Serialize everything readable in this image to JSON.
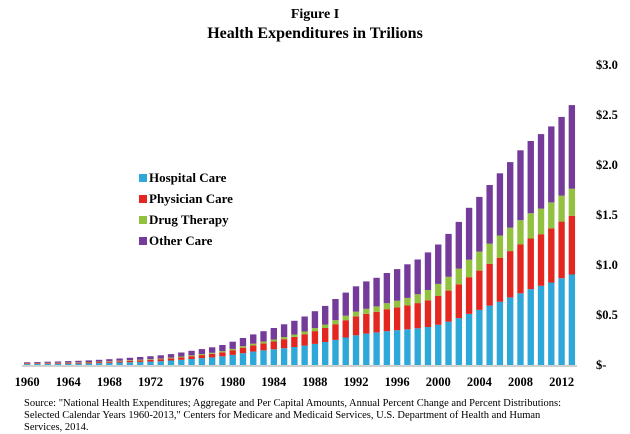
{
  "header": {
    "figure_label": "Figure I",
    "title": "Health Expenditures in Trilions"
  },
  "source_text": "Source: \"National Health Expenditures; Aggregate and Per Capital Amounts, Annual Percent Change and Percent Distributions: Selected Calendar Years 1960-2013,\" Centers for Medicare and Medicaid Services, U.S. Department of Health and Human Services, 2014.",
  "colors": {
    "hospital": "#2ea8d8",
    "physician": "#e3261f",
    "drug": "#92c13f",
    "other": "#743b9a"
  },
  "chart_data": {
    "type": "bar",
    "stacked": true,
    "title": "Health Expenditures in Trilions",
    "x": [
      1960,
      1961,
      1962,
      1963,
      1964,
      1965,
      1966,
      1967,
      1968,
      1969,
      1970,
      1971,
      1972,
      1973,
      1974,
      1975,
      1976,
      1977,
      1978,
      1979,
      1980,
      1981,
      1982,
      1983,
      1984,
      1985,
      1986,
      1987,
      1988,
      1989,
      1990,
      1991,
      1992,
      1993,
      1994,
      1995,
      1996,
      1997,
      1998,
      1999,
      2000,
      2001,
      2002,
      2003,
      2004,
      2005,
      2006,
      2007,
      2008,
      2009,
      2010,
      2011,
      2012,
      2013
    ],
    "x_tick_labels": [
      "1960",
      "1964",
      "1968",
      "1972",
      "1976",
      "1980",
      "1984",
      "1988",
      "1992",
      "1996",
      "2000",
      "2004",
      "2008",
      "2012"
    ],
    "y_tick_labels": [
      "$-",
      "$0.5",
      "$1.0",
      "$1.5",
      "$2.0",
      "$2.5",
      "$3.0"
    ],
    "ylim": [
      0,
      3.0
    ],
    "y_axis_side": "right",
    "legend_position": "left",
    "series": [
      {
        "name": "Hospital Care",
        "color_key": "hospital",
        "values": [
          0.009,
          0.01,
          0.011,
          0.012,
          0.013,
          0.014,
          0.016,
          0.019,
          0.022,
          0.025,
          0.028,
          0.031,
          0.034,
          0.039,
          0.045,
          0.052,
          0.06,
          0.068,
          0.076,
          0.087,
          0.101,
          0.118,
          0.134,
          0.147,
          0.157,
          0.168,
          0.18,
          0.194,
          0.211,
          0.23,
          0.251,
          0.275,
          0.297,
          0.314,
          0.326,
          0.338,
          0.348,
          0.357,
          0.367,
          0.38,
          0.402,
          0.433,
          0.469,
          0.511,
          0.551,
          0.594,
          0.632,
          0.676,
          0.717,
          0.759,
          0.792,
          0.825,
          0.868,
          0.905
        ]
      },
      {
        "name": "Physician Care",
        "color_key": "physician",
        "values": [
          0.006,
          0.006,
          0.007,
          0.007,
          0.008,
          0.009,
          0.009,
          0.01,
          0.011,
          0.012,
          0.014,
          0.015,
          0.017,
          0.019,
          0.021,
          0.024,
          0.028,
          0.031,
          0.035,
          0.04,
          0.047,
          0.055,
          0.062,
          0.069,
          0.078,
          0.09,
          0.101,
          0.114,
          0.128,
          0.14,
          0.157,
          0.173,
          0.189,
          0.197,
          0.206,
          0.22,
          0.228,
          0.238,
          0.252,
          0.266,
          0.288,
          0.311,
          0.338,
          0.367,
          0.393,
          0.418,
          0.441,
          0.463,
          0.488,
          0.506,
          0.516,
          0.541,
          0.566,
          0.587
        ]
      },
      {
        "name": "Drug Therapy",
        "color_key": "drug",
        "values": [
          0.003,
          0.003,
          0.004,
          0.004,
          0.004,
          0.004,
          0.005,
          0.005,
          0.005,
          0.006,
          0.006,
          0.007,
          0.007,
          0.007,
          0.008,
          0.009,
          0.009,
          0.01,
          0.011,
          0.012,
          0.013,
          0.015,
          0.017,
          0.018,
          0.02,
          0.022,
          0.024,
          0.027,
          0.03,
          0.034,
          0.04,
          0.045,
          0.048,
          0.051,
          0.054,
          0.06,
          0.067,
          0.076,
          0.088,
          0.104,
          0.121,
          0.138,
          0.157,
          0.175,
          0.19,
          0.202,
          0.222,
          0.235,
          0.243,
          0.253,
          0.256,
          0.26,
          0.26,
          0.271
        ]
      },
      {
        "name": "Other Care",
        "color_key": "other",
        "values": [
          0.009,
          0.01,
          0.011,
          0.012,
          0.014,
          0.015,
          0.016,
          0.018,
          0.02,
          0.022,
          0.024,
          0.027,
          0.03,
          0.032,
          0.035,
          0.04,
          0.045,
          0.05,
          0.055,
          0.061,
          0.072,
          0.082,
          0.093,
          0.104,
          0.115,
          0.127,
          0.137,
          0.15,
          0.169,
          0.187,
          0.212,
          0.231,
          0.253,
          0.274,
          0.286,
          0.302,
          0.316,
          0.336,
          0.348,
          0.376,
          0.394,
          0.429,
          0.467,
          0.519,
          0.547,
          0.586,
          0.622,
          0.655,
          0.699,
          0.722,
          0.745,
          0.76,
          0.787,
          0.836
        ]
      }
    ]
  }
}
